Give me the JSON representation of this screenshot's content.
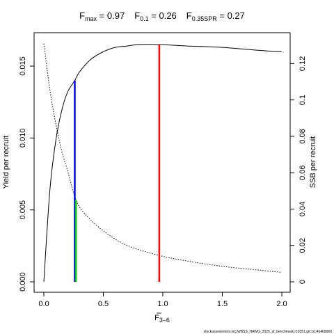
{
  "chart_data": {
    "type": "line",
    "title_parts": [
      {
        "symbol": "F",
        "sub": "max",
        "text": " = 0.97"
      },
      {
        "symbol": "F",
        "sub": "0.1",
        "text": " = 0.26"
      },
      {
        "symbol": "F",
        "sub": "0.35SPR",
        "text": " = 0.27"
      }
    ],
    "xlabel": {
      "symbol": "F",
      "sub": "3–6"
    },
    "ylabel_left": "Yield per recruit",
    "ylabel_right": "SSB per recruit",
    "xlim": [
      0,
      2
    ],
    "ylim_left": [
      0,
      0.0165
    ],
    "ylim_right": [
      0,
      0.132
    ],
    "x_ticks": [
      0,
      0.5,
      1,
      1.5,
      2
    ],
    "x_tick_labels": [
      "0.0",
      "0.5",
      "1.0",
      "1.5",
      "2.0"
    ],
    "y_left_ticks": [
      0,
      0.005,
      0.01,
      0.015
    ],
    "y_left_tick_labels": [
      "0.000",
      "0.005",
      "0.010",
      "0.015"
    ],
    "y_right_ticks": [
      0,
      0.02,
      0.04,
      0.06,
      0.08,
      0.1,
      0.12
    ],
    "y_right_tick_labels": [
      "0",
      "0.02",
      "0.04",
      "0.06",
      "0.08",
      "0.1",
      "0.12"
    ],
    "series": [
      {
        "axis": "left",
        "style": "solid",
        "x": [
          0,
          0.05,
          0.1,
          0.15,
          0.2,
          0.26,
          0.3,
          0.4,
          0.5,
          0.6,
          0.7,
          0.8,
          0.97,
          1.2,
          1.5,
          1.8,
          2.0
        ],
        "y": [
          0,
          0.0063,
          0.0098,
          0.0119,
          0.0132,
          0.014,
          0.0146,
          0.0155,
          0.016,
          0.0163,
          0.0164,
          0.0165,
          0.0165,
          0.0164,
          0.0163,
          0.0161,
          0.016
        ]
      },
      {
        "axis": "right",
        "style": "dotted",
        "x": [
          0,
          0.05,
          0.1,
          0.15,
          0.2,
          0.27,
          0.35,
          0.5,
          0.7,
          0.97,
          1.2,
          1.5,
          1.8,
          2.0
        ],
        "y": [
          0.131,
          0.106,
          0.087,
          0.072,
          0.061,
          0.045,
          0.037,
          0.028,
          0.02,
          0.0145,
          0.0115,
          0.0085,
          0.0065,
          0.0052
        ]
      }
    ],
    "reference_lines": [
      {
        "x": 0.97,
        "y_top": 0.0165,
        "y_bottom": 0,
        "color": "#ff0000"
      },
      {
        "x": 0.26,
        "y_top": 0.014,
        "y_bottom": 0,
        "color": "#0000ff"
      },
      {
        "x": 0.27,
        "y_top": 0.0057,
        "y_bottom": 0,
        "color": "#00cc00"
      }
    ],
    "footer": "stockassessment.org,WBSS_HAWG_2025_sf_benchmark,r19351,git:1cc464b8060"
  }
}
